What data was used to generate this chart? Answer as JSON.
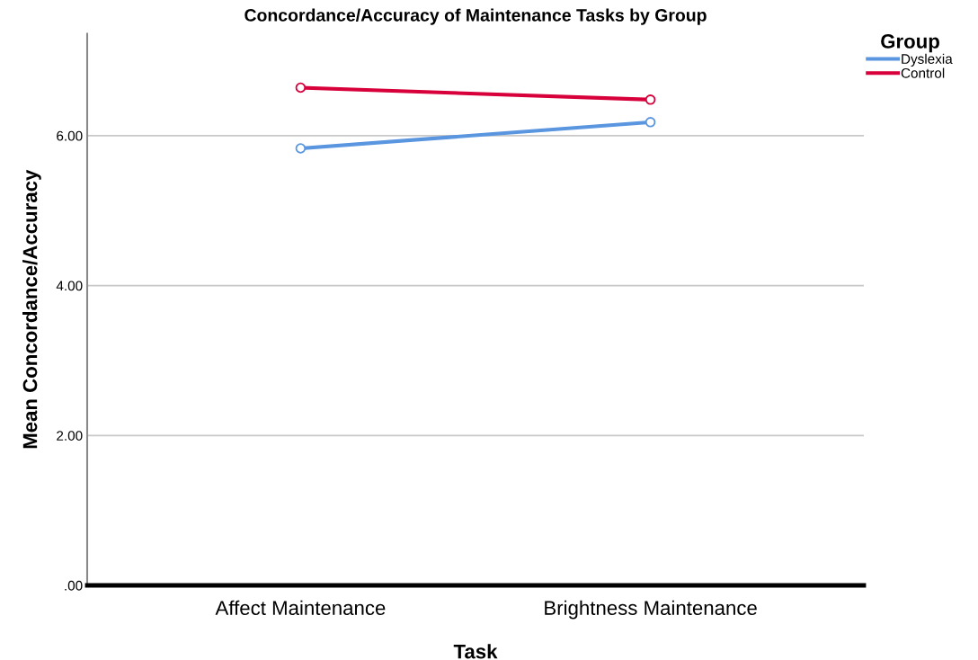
{
  "chart_data": {
    "type": "line",
    "title": "Concordance/Accuracy of Maintenance Tasks by Group",
    "xlabel": "Task",
    "ylabel": "Mean Concordance/Accuracy",
    "legend_title": "Group",
    "categories": [
      "Affect Maintenance",
      "Brightness Maintenance"
    ],
    "series": [
      {
        "name": "Dyslexia",
        "color": "#5a96e0",
        "values": [
          5.83,
          6.18
        ]
      },
      {
        "name": "Control",
        "color": "#d7003a",
        "values": [
          6.64,
          6.48
        ]
      }
    ],
    "ylim": [
      0,
      7.36
    ],
    "yticks": [
      {
        "value": 0,
        "label": ".00"
      },
      {
        "value": 2,
        "label": "2.00"
      },
      {
        "value": 4,
        "label": "4.00"
      },
      {
        "value": 6,
        "label": "6.00"
      }
    ],
    "grid": "y",
    "legend": "top right",
    "marker": "circle",
    "line_style": "solid"
  }
}
